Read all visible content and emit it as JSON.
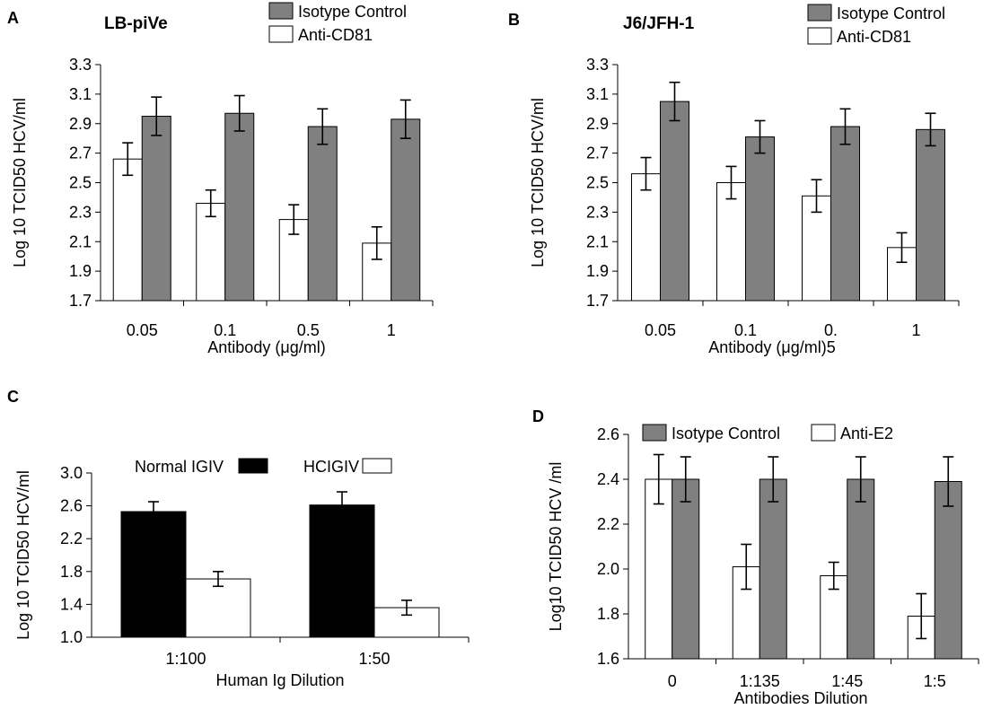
{
  "chart_data": [
    {
      "panel": "A",
      "type": "bar",
      "title": "LB-piVe",
      "xlabel": "Antibody (μg/ml)",
      "ylabel": "Log 10 TCID50 HCV/ml",
      "ylim": [
        1.7,
        3.3
      ],
      "yticks": [
        "1.7",
        "1.9",
        "2.1",
        "2.3",
        "2.5",
        "2.7",
        "2.9",
        "3.1",
        "3.3"
      ],
      "categories": [
        "0.05",
        "0.1",
        "0.5",
        "1"
      ],
      "series": [
        {
          "name": "Anti-CD81",
          "color": "#ffffff",
          "values": [
            2.66,
            2.36,
            2.25,
            2.09
          ],
          "errors": [
            0.11,
            0.09,
            0.1,
            0.11
          ]
        },
        {
          "name": "Isotype Control",
          "color": "#808080",
          "values": [
            2.95,
            2.97,
            2.88,
            2.93
          ],
          "errors": [
            0.13,
            0.12,
            0.12,
            0.13
          ]
        }
      ],
      "legend_position": "top-right",
      "legend_order": [
        "Isotype Control",
        "Anti-CD81"
      ]
    },
    {
      "panel": "B",
      "type": "bar",
      "title": "J6/JFH-1",
      "xlabel": "Antibody (μg/ml)5",
      "ylabel": "Log 10 TCID50 HCV/ml",
      "ylim": [
        1.7,
        3.3
      ],
      "yticks": [
        "1.7",
        "1.9",
        "2.1",
        "2.3",
        "2.5",
        "2.7",
        "2.9",
        "3.1",
        "3.3"
      ],
      "categories": [
        "0.05",
        "0.1",
        "0.",
        "1"
      ],
      "series": [
        {
          "name": "Anti-CD81",
          "color": "#ffffff",
          "values": [
            2.56,
            2.5,
            2.41,
            2.06
          ],
          "errors": [
            0.11,
            0.11,
            0.11,
            0.1
          ]
        },
        {
          "name": "Isotype Control",
          "color": "#808080",
          "values": [
            3.05,
            2.81,
            2.88,
            2.86
          ],
          "errors": [
            0.13,
            0.11,
            0.12,
            0.11
          ]
        }
      ],
      "legend_position": "top-right",
      "legend_order": [
        "Isotype Control",
        "Anti-CD81"
      ]
    },
    {
      "panel": "C",
      "type": "bar",
      "title": "",
      "xlabel": "Human Ig Dilution",
      "ylabel": "Log 10 TCID50 HCV/ml",
      "ylim": [
        1.0,
        3.0
      ],
      "yticks": [
        "1.0",
        "1.4",
        "1.8",
        "2.2",
        "2.6",
        "3.0"
      ],
      "categories": [
        "1:100",
        "1:50"
      ],
      "series": [
        {
          "name": "Normal IGIV",
          "color": "#000000",
          "values": [
            2.53,
            2.61
          ],
          "errors": [
            0.12,
            0.16
          ]
        },
        {
          "name": "HCIGIV",
          "color": "#ffffff",
          "values": [
            1.71,
            1.36
          ],
          "errors": [
            0.09,
            0.09
          ]
        }
      ],
      "legend_position": "top-center",
      "legend_order": [
        "Normal IGIV",
        "HCIGIV"
      ]
    },
    {
      "panel": "D",
      "type": "bar",
      "title": "",
      "xlabel": "Antibodies Dilution",
      "ylabel": "Log10 TCID50 HCV /ml",
      "ylim": [
        1.6,
        2.6
      ],
      "yticks": [
        "1.6",
        "1.8",
        "2.0",
        "2.2",
        "2.4",
        "2.6"
      ],
      "categories": [
        "0",
        "1:135",
        "1:45",
        "1:5"
      ],
      "series": [
        {
          "name": "Anti-E2",
          "color": "#ffffff",
          "values": [
            2.4,
            2.01,
            1.97,
            1.79
          ],
          "errors": [
            0.11,
            0.1,
            0.06,
            0.1
          ]
        },
        {
          "name": "Isotype Control",
          "color": "#808080",
          "values": [
            2.4,
            2.4,
            2.4,
            2.39
          ],
          "errors": [
            0.1,
            0.1,
            0.1,
            0.11
          ]
        }
      ],
      "legend_position": "top",
      "legend_order": [
        "Isotype Control",
        "Anti-E2"
      ]
    }
  ]
}
